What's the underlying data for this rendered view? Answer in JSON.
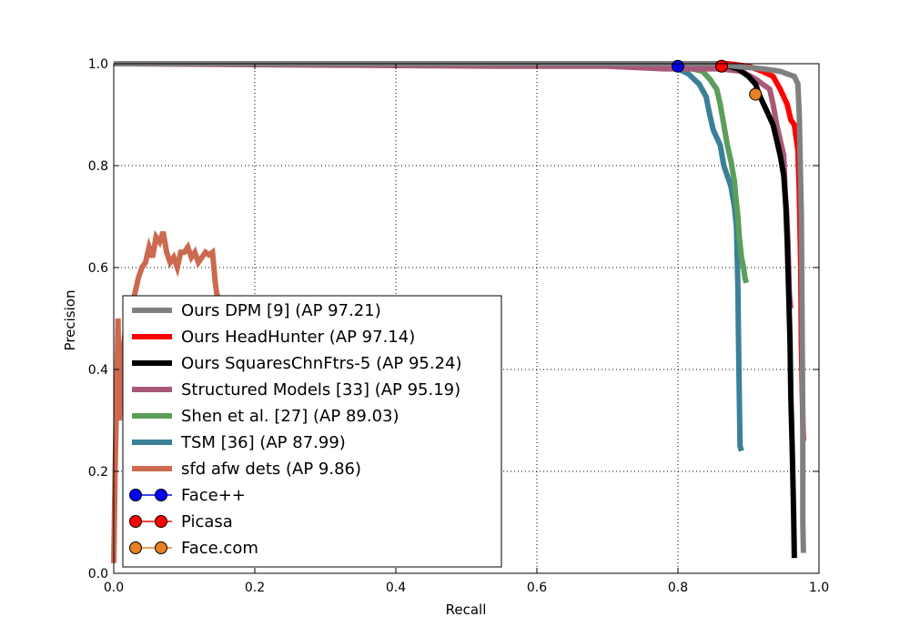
{
  "chart_data": {
    "type": "line",
    "title": "",
    "xlabel": "Recall",
    "ylabel": "Precision",
    "xlim": [
      0,
      1
    ],
    "ylim": [
      0,
      1
    ],
    "xticks": [
      "0.0",
      "0.2",
      "0.4",
      "0.6",
      "0.8",
      "1.0"
    ],
    "yticks": [
      "0.0",
      "0.2",
      "0.4",
      "0.6",
      "0.8",
      "1.0"
    ],
    "grid": true,
    "legend_position": "lower-left",
    "series": [
      {
        "name": "Ours DPM [9] (AP 97.21)",
        "color": "#808080",
        "points": [
          [
            0,
            1
          ],
          [
            0.85,
            1
          ],
          [
            0.88,
            0.995
          ],
          [
            0.92,
            0.99
          ],
          [
            0.945,
            0.985
          ],
          [
            0.955,
            0.98
          ],
          [
            0.965,
            0.975
          ],
          [
            0.97,
            0.96
          ],
          [
            0.972,
            0.9
          ],
          [
            0.975,
            0.7
          ],
          [
            0.976,
            0.5
          ],
          [
            0.977,
            0.3
          ],
          [
            0.977,
            0.1
          ],
          [
            0.978,
            0.04
          ]
        ]
      },
      {
        "name": "Ours HeadHunter (AP 97.14)",
        "color": "#ff0000",
        "points": [
          [
            0,
            1
          ],
          [
            0.87,
            1
          ],
          [
            0.9,
            0.995
          ],
          [
            0.92,
            0.985
          ],
          [
            0.935,
            0.975
          ],
          [
            0.945,
            0.95
          ],
          [
            0.955,
            0.92
          ],
          [
            0.96,
            0.89
          ],
          [
            0.965,
            0.88
          ],
          [
            0.97,
            0.83
          ],
          [
            0.972,
            0.75
          ],
          [
            0.974,
            0.6
          ],
          [
            0.975,
            0.45
          ],
          [
            0.977,
            0.3
          ],
          [
            0.978,
            0.26
          ]
        ]
      },
      {
        "name": "Ours SquaresChnFtrs-5 (AP 95.24)",
        "color": "#000000",
        "points": [
          [
            0,
            1
          ],
          [
            0.86,
            1
          ],
          [
            0.885,
            0.99
          ],
          [
            0.9,
            0.975
          ],
          [
            0.91,
            0.96
          ],
          [
            0.915,
            0.94
          ],
          [
            0.925,
            0.91
          ],
          [
            0.935,
            0.88
          ],
          [
            0.94,
            0.85
          ],
          [
            0.945,
            0.82
          ],
          [
            0.95,
            0.78
          ],
          [
            0.953,
            0.72
          ],
          [
            0.955,
            0.65
          ],
          [
            0.957,
            0.55
          ],
          [
            0.959,
            0.45
          ],
          [
            0.96,
            0.35
          ],
          [
            0.962,
            0.25
          ],
          [
            0.964,
            0.12
          ],
          [
            0.965,
            0.03
          ]
        ]
      },
      {
        "name": "Structured Models [33] (AP 95.19)",
        "color": "#a9587a",
        "points": [
          [
            0,
            1
          ],
          [
            0.55,
            0.995
          ],
          [
            0.7,
            0.995
          ],
          [
            0.78,
            0.99
          ],
          [
            0.86,
            0.99
          ],
          [
            0.89,
            0.985
          ],
          [
            0.91,
            0.97
          ],
          [
            0.92,
            0.96
          ],
          [
            0.93,
            0.95
          ],
          [
            0.935,
            0.92
          ],
          [
            0.94,
            0.88
          ],
          [
            0.945,
            0.85
          ],
          [
            0.95,
            0.82
          ],
          [
            0.952,
            0.75
          ],
          [
            0.954,
            0.71
          ],
          [
            0.956,
            0.65
          ],
          [
            0.958,
            0.55
          ],
          [
            0.96,
            0.52
          ]
        ]
      },
      {
        "name": "Shen et al. [27] (AP 89.03)",
        "color": "#5a9e5a",
        "points": [
          [
            0,
            1
          ],
          [
            0.8,
            1
          ],
          [
            0.82,
            0.99
          ],
          [
            0.835,
            0.985
          ],
          [
            0.845,
            0.97
          ],
          [
            0.855,
            0.95
          ],
          [
            0.86,
            0.92
          ],
          [
            0.865,
            0.88
          ],
          [
            0.87,
            0.84
          ],
          [
            0.875,
            0.81
          ],
          [
            0.88,
            0.77
          ],
          [
            0.882,
            0.74
          ],
          [
            0.885,
            0.7
          ],
          [
            0.887,
            0.66
          ],
          [
            0.89,
            0.62
          ],
          [
            0.893,
            0.6
          ],
          [
            0.895,
            0.58
          ],
          [
            0.897,
            0.57
          ]
        ]
      },
      {
        "name": "TSM [36] (AP 87.99)",
        "color": "#3a8098",
        "points": [
          [
            0,
            1
          ],
          [
            0.78,
            1
          ],
          [
            0.8,
            0.99
          ],
          [
            0.815,
            0.98
          ],
          [
            0.83,
            0.96
          ],
          [
            0.84,
            0.935
          ],
          [
            0.845,
            0.9
          ],
          [
            0.85,
            0.87
          ],
          [
            0.86,
            0.84
          ],
          [
            0.865,
            0.8
          ],
          [
            0.875,
            0.76
          ],
          [
            0.88,
            0.72
          ],
          [
            0.883,
            0.68
          ],
          [
            0.884,
            0.62
          ],
          [
            0.885,
            0.56
          ],
          [
            0.886,
            0.45
          ],
          [
            0.887,
            0.35
          ],
          [
            0.888,
            0.25
          ],
          [
            0.89,
            0.24
          ]
        ]
      },
      {
        "name": "sfd afw dets (AP 9.86)",
        "color": "#cc6a50",
        "points": [
          [
            0,
            0.02
          ],
          [
            0.002,
            0.2
          ],
          [
            0.004,
            0.35
          ],
          [
            0.006,
            0.5
          ],
          [
            0.008,
            0.3
          ],
          [
            0.01,
            0.4
          ],
          [
            0.015,
            0.46
          ],
          [
            0.02,
            0.45
          ],
          [
            0.025,
            0.52
          ],
          [
            0.03,
            0.55
          ],
          [
            0.035,
            0.58
          ],
          [
            0.04,
            0.6
          ],
          [
            0.045,
            0.61
          ],
          [
            0.05,
            0.64
          ],
          [
            0.055,
            0.62
          ],
          [
            0.06,
            0.66
          ],
          [
            0.065,
            0.65
          ],
          [
            0.07,
            0.67
          ],
          [
            0.075,
            0.63
          ],
          [
            0.08,
            0.61
          ],
          [
            0.085,
            0.62
          ],
          [
            0.09,
            0.6
          ],
          [
            0.095,
            0.63
          ],
          [
            0.1,
            0.63
          ],
          [
            0.105,
            0.64
          ],
          [
            0.11,
            0.62
          ],
          [
            0.115,
            0.63
          ],
          [
            0.12,
            0.61
          ],
          [
            0.125,
            0.62
          ],
          [
            0.13,
            0.63
          ],
          [
            0.135,
            0.625
          ],
          [
            0.14,
            0.63
          ],
          [
            0.142,
            0.6
          ],
          [
            0.144,
            0.57
          ],
          [
            0.146,
            0.55
          ],
          [
            0.148,
            0.54
          ]
        ]
      }
    ],
    "markers": [
      {
        "name": "Face++",
        "color": "#0000ff",
        "x": 0.8,
        "y": 0.995
      },
      {
        "name": "Picasa",
        "color": "#ff0000",
        "x": 0.862,
        "y": 0.995
      },
      {
        "name": "Face.com",
        "color": "#e68022",
        "x": 0.91,
        "y": 0.94
      }
    ]
  }
}
